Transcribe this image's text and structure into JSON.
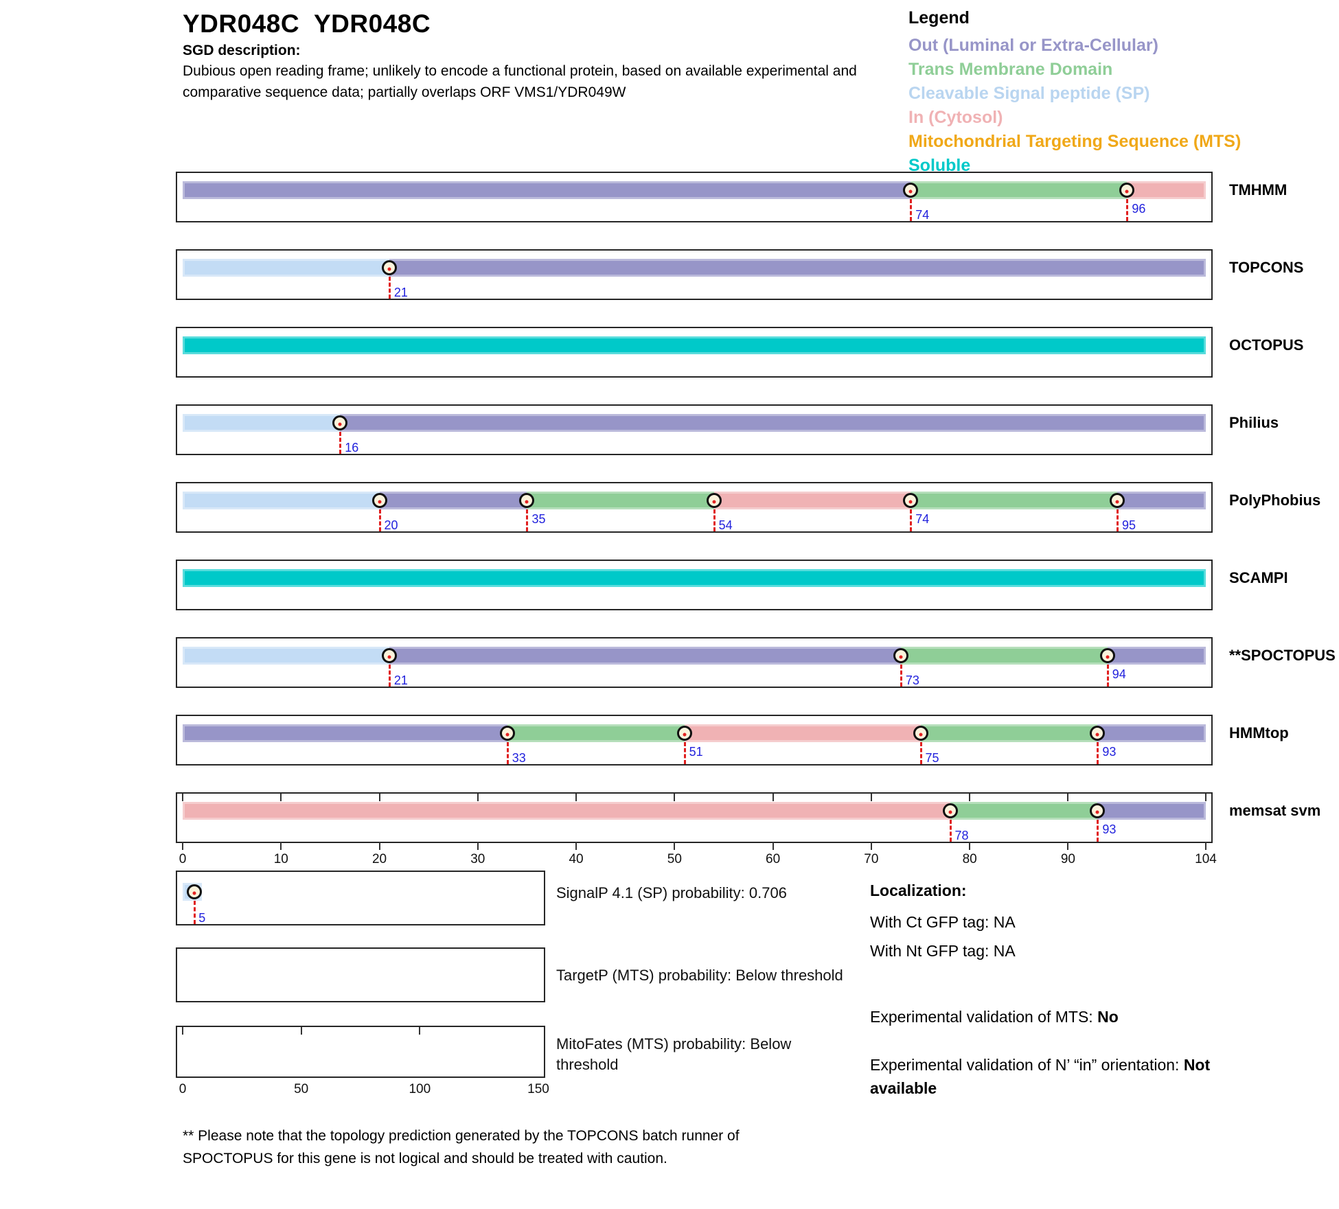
{
  "header": {
    "title": "YDR048C  YDR048C",
    "sgd_label": "SGD description:",
    "sgd_description_lines": [
      "Dubious open reading frame; unlikely to encode a functional protein, based on available experimental and",
      "comparative sequence data; partially overlaps ORF VMS1/YDR049W"
    ]
  },
  "legend": {
    "title": "Legend",
    "items": [
      {
        "label": "Out (Luminal or Extra-Cellular)",
        "color": "#9795c8",
        "region": "out"
      },
      {
        "label": "Trans Membrane Domain",
        "color": "#8fce97",
        "region": "tm"
      },
      {
        "label": "Cleavable Signal peptide (SP)",
        "color": "#b9d5f0",
        "region": "sp"
      },
      {
        "label": "In (Cytosol)",
        "color": "#f0b2b4",
        "region": "in"
      },
      {
        "label": "Mitochondrial Targeting Sequence (MTS)",
        "color": "#f0a818",
        "region": "mts"
      },
      {
        "label": "Soluble",
        "color": "#00c9c9",
        "region": "soluble"
      }
    ]
  },
  "chart_data": {
    "type": "bar",
    "subtype": "membrane-topology-prediction-tracks",
    "xlim": [
      0,
      104
    ],
    "x_ticks": [
      0,
      10,
      20,
      30,
      40,
      50,
      60,
      70,
      80,
      90,
      104
    ],
    "region_colors": {
      "out": "#9795c8",
      "tm": "#8fce97",
      "sp": "#c3dcf5",
      "in": "#f0b2b4",
      "soluble": "#00c9c9",
      "mts": "#f0a818"
    },
    "tracks": [
      {
        "name": "TMHMM",
        "ruler_ticks": false,
        "segments": [
          {
            "start": 0,
            "end": 74,
            "region": "out"
          },
          {
            "start": 74,
            "end": 96,
            "region": "tm"
          },
          {
            "start": 96,
            "end": 104,
            "region": "in"
          }
        ],
        "breakpoints": [
          {
            "pos": 74,
            "depth": "long"
          },
          {
            "pos": 96,
            "depth": "short"
          }
        ]
      },
      {
        "name": "TOPCONS",
        "ruler_ticks": false,
        "segments": [
          {
            "start": 0,
            "end": 21,
            "region": "sp"
          },
          {
            "start": 21,
            "end": 104,
            "region": "out"
          }
        ],
        "breakpoints": [
          {
            "pos": 21,
            "depth": "long"
          }
        ]
      },
      {
        "name": "OCTOPUS",
        "ruler_ticks": false,
        "segments": [
          {
            "start": 0,
            "end": 104,
            "region": "soluble"
          }
        ],
        "breakpoints": []
      },
      {
        "name": "Philius",
        "ruler_ticks": false,
        "segments": [
          {
            "start": 0,
            "end": 16,
            "region": "sp"
          },
          {
            "start": 16,
            "end": 104,
            "region": "out"
          }
        ],
        "breakpoints": [
          {
            "pos": 16,
            "depth": "long"
          }
        ]
      },
      {
        "name": "PolyPhobius",
        "ruler_ticks": false,
        "segments": [
          {
            "start": 0,
            "end": 20,
            "region": "sp"
          },
          {
            "start": 20,
            "end": 35,
            "region": "out"
          },
          {
            "start": 35,
            "end": 54,
            "region": "tm"
          },
          {
            "start": 54,
            "end": 74,
            "region": "in"
          },
          {
            "start": 74,
            "end": 95,
            "region": "tm"
          },
          {
            "start": 95,
            "end": 104,
            "region": "out"
          }
        ],
        "breakpoints": [
          {
            "pos": 20,
            "depth": "long"
          },
          {
            "pos": 35,
            "depth": "short"
          },
          {
            "pos": 54,
            "depth": "long"
          },
          {
            "pos": 74,
            "depth": "short"
          },
          {
            "pos": 95,
            "depth": "long"
          }
        ]
      },
      {
        "name": "SCAMPI",
        "ruler_ticks": false,
        "segments": [
          {
            "start": 0,
            "end": 104,
            "region": "soluble"
          }
        ],
        "breakpoints": []
      },
      {
        "name": "**SPOCTOPUS",
        "ruler_ticks": false,
        "segments": [
          {
            "start": 0,
            "end": 21,
            "region": "sp"
          },
          {
            "start": 21,
            "end": 73,
            "region": "out"
          },
          {
            "start": 73,
            "end": 94,
            "region": "tm"
          },
          {
            "start": 94,
            "end": 104,
            "region": "out"
          }
        ],
        "breakpoints": [
          {
            "pos": 21,
            "depth": "long"
          },
          {
            "pos": 73,
            "depth": "long"
          },
          {
            "pos": 94,
            "depth": "short"
          }
        ]
      },
      {
        "name": "HMMtop",
        "ruler_ticks": false,
        "segments": [
          {
            "start": 0,
            "end": 33,
            "region": "out"
          },
          {
            "start": 33,
            "end": 51,
            "region": "tm"
          },
          {
            "start": 51,
            "end": 75,
            "region": "in"
          },
          {
            "start": 75,
            "end": 93,
            "region": "tm"
          },
          {
            "start": 93,
            "end": 104,
            "region": "out"
          }
        ],
        "breakpoints": [
          {
            "pos": 33,
            "depth": "long"
          },
          {
            "pos": 51,
            "depth": "short"
          },
          {
            "pos": 75,
            "depth": "long"
          },
          {
            "pos": 93,
            "depth": "short"
          }
        ]
      },
      {
        "name": "memsat svm",
        "ruler_ticks": true,
        "segments": [
          {
            "start": 0,
            "end": 78,
            "region": "in"
          },
          {
            "start": 78,
            "end": 93,
            "region": "tm"
          },
          {
            "start": 93,
            "end": 104,
            "region": "out"
          }
        ],
        "breakpoints": [
          {
            "pos": 78,
            "depth": "long"
          },
          {
            "pos": 93,
            "depth": "short"
          }
        ]
      }
    ],
    "probability_plots": [
      {
        "name": "SignalP",
        "label": "SignalP 4.1 (SP) probability: 0.706",
        "xlim": [
          0,
          150
        ],
        "top_ticks": [],
        "x_axis_ticks": [],
        "segments": [
          {
            "start": 0,
            "end": 5,
            "region": "sp"
          }
        ],
        "breakpoints": [
          {
            "pos": 5,
            "depth": "long"
          }
        ]
      },
      {
        "name": "TargetP",
        "label": "TargetP (MTS) probability: Below threshold",
        "xlim": [
          0,
          150
        ],
        "top_ticks": [],
        "x_axis_ticks": [],
        "segments": [],
        "breakpoints": []
      },
      {
        "name": "MitoFates",
        "label": "MitoFates (MTS) probability: Below threshold",
        "xlim": [
          0,
          150
        ],
        "top_ticks": [
          0,
          50,
          100
        ],
        "x_axis_ticks": [
          0,
          50,
          100,
          150
        ],
        "segments": [],
        "breakpoints": []
      }
    ]
  },
  "localization": {
    "title": "Localization:",
    "with_ct": "With Ct GFP tag: NA",
    "with_nt": "With Nt GFP tag: NA",
    "mts_label": "Experimental validation of MTS: ",
    "mts_value": "No",
    "orientation_label": "Experimental validation of N’ “in” orientation: ",
    "orientation_value": "Not available"
  },
  "footnote_lines": [
    "** Please note that the topology prediction generated by the TOPCONS batch runner of",
    "SPOCTOPUS for this gene is not logical and should be treated with caution."
  ]
}
